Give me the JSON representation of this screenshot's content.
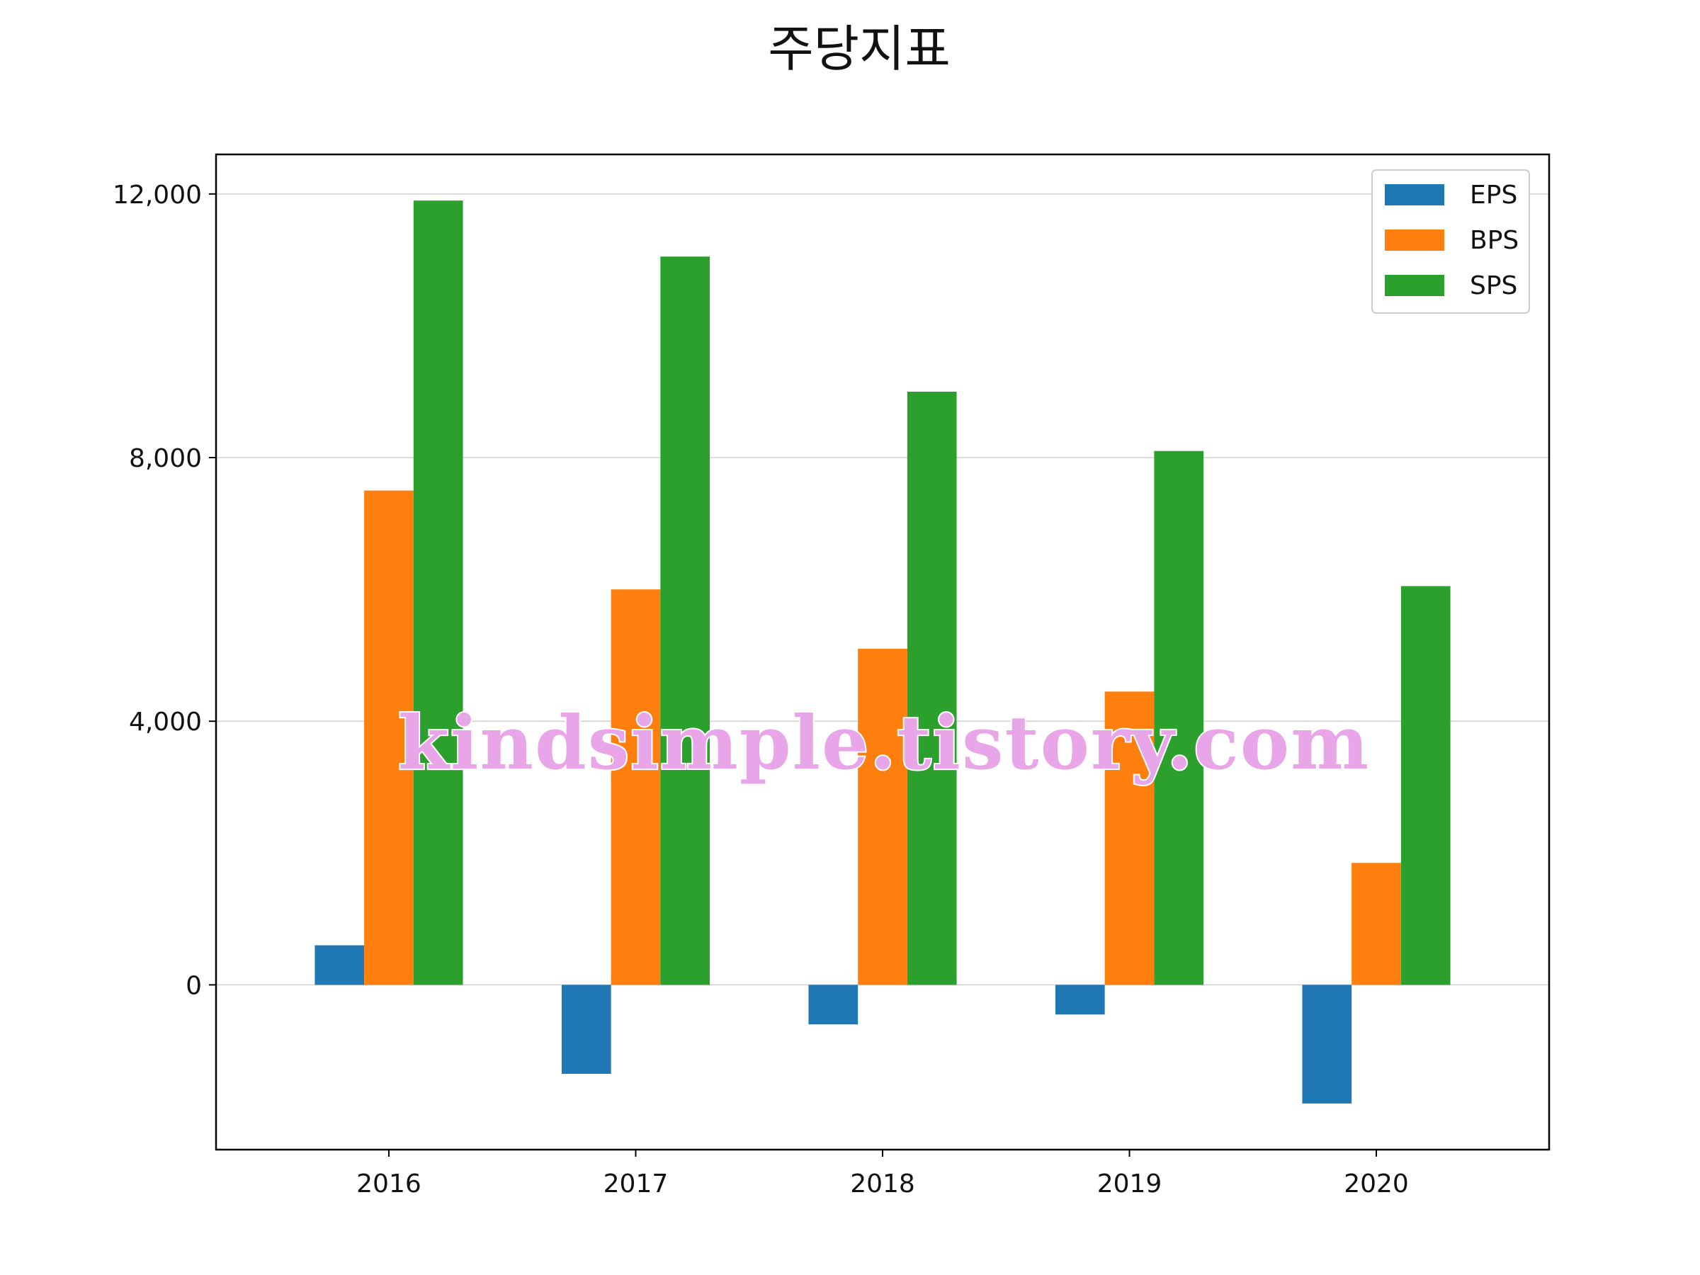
{
  "chart_data": {
    "type": "bar",
    "title": "주당지표",
    "xlabel": "",
    "ylabel": "",
    "categories": [
      "2016",
      "2017",
      "2018",
      "2019",
      "2020"
    ],
    "series": [
      {
        "name": "EPS",
        "color": "#1f77b4",
        "values": [
          600,
          -1350,
          -600,
          -450,
          -1800
        ]
      },
      {
        "name": "BPS",
        "color": "#ff7f0e",
        "values": [
          7500,
          6000,
          5100,
          4450,
          1850
        ]
      },
      {
        "name": "SPS",
        "color": "#2ca02c",
        "values": [
          11900,
          11050,
          9000,
          8100,
          6050
        ]
      }
    ],
    "ylim": [
      -2500,
      12600
    ],
    "yticks": [
      0,
      4000,
      8000,
      12000
    ],
    "ytick_labels": [
      "0",
      "4,000",
      "8,000",
      "12,000"
    ],
    "grid": "horizontal",
    "legend_position": "top-right",
    "watermark": {
      "text": "kindsimple.tistory.com",
      "color": "#e8a6e8"
    }
  }
}
